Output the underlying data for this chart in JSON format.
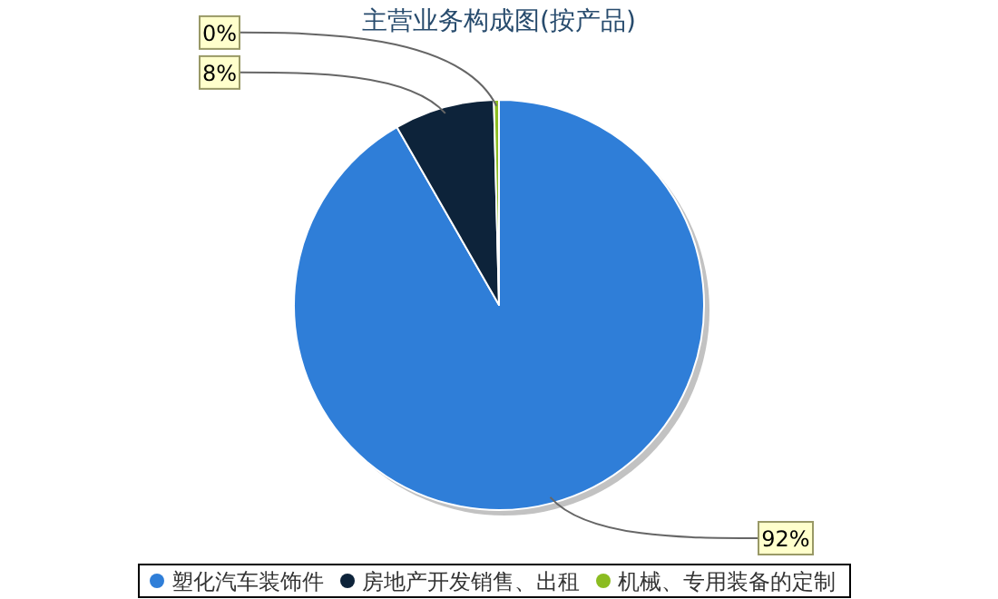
{
  "chart_data": {
    "type": "pie",
    "title": "主营业务构成图(按产品)",
    "categories": [
      "塑化汽车装饰件",
      "房地产开发销售、出租",
      "机械、专用装备的定制"
    ],
    "values": [
      91.7,
      7.9,
      0.4
    ],
    "value_labels": [
      "92%",
      "8%",
      "0%"
    ],
    "colors": [
      "#2f7ed8",
      "#0d233a",
      "#8bbc21"
    ],
    "legend": "bottom"
  }
}
